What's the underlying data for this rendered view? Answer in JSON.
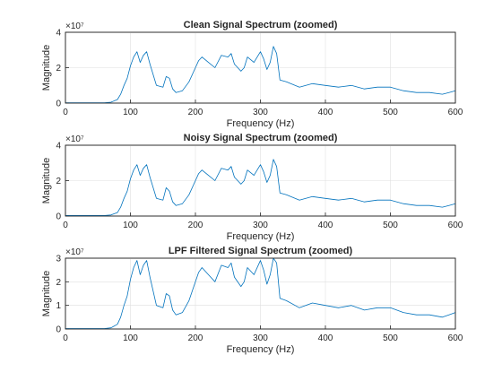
{
  "colors": {
    "series": "#0072bd",
    "axes": "#262626",
    "grid": "#dfdfdf",
    "background": "#ffffff"
  },
  "chart_data": [
    {
      "type": "line",
      "title": "Clean Signal Spectrum (zoomed)",
      "xlabel": "Frequency (Hz)",
      "ylabel": "Magnitude",
      "exponent_label": "×10⁷",
      "xlim": [
        0,
        600
      ],
      "ylim": [
        0,
        4
      ],
      "xticks": [
        "0",
        "100",
        "200",
        "300",
        "400",
        "500",
        "600"
      ],
      "yticks": [
        "0",
        "2",
        "4"
      ],
      "xtick_values": [
        0,
        100,
        200,
        300,
        400,
        500,
        600
      ],
      "ytick_values": [
        0,
        2,
        4
      ],
      "grid": true,
      "series": [
        {
          "x": [
            0,
            60,
            70,
            80,
            85,
            90,
            95,
            100,
            105,
            110,
            115,
            120,
            125,
            130,
            140,
            150,
            155,
            160,
            165,
            170,
            180,
            190,
            200,
            205,
            210,
            220,
            230,
            240,
            250,
            255,
            260,
            270,
            275,
            280,
            290,
            300,
            305,
            310,
            315,
            320,
            325,
            330,
            340,
            360,
            380,
            400,
            420,
            440,
            460,
            480,
            500,
            520,
            540,
            560,
            580,
            590,
            600
          ],
          "y": [
            0.02,
            0.02,
            0.05,
            0.2,
            0.5,
            1.0,
            1.4,
            2.1,
            2.6,
            2.9,
            2.3,
            2.7,
            2.9,
            2.2,
            1.0,
            0.9,
            1.5,
            1.4,
            0.8,
            0.6,
            0.7,
            1.2,
            2.0,
            2.4,
            2.6,
            2.3,
            2.0,
            2.7,
            2.6,
            2.8,
            2.2,
            1.8,
            2.0,
            2.6,
            2.3,
            2.9,
            2.5,
            1.9,
            2.3,
            3.2,
            2.8,
            1.3,
            1.2,
            0.9,
            1.1,
            1.0,
            0.9,
            1.0,
            0.8,
            0.9,
            0.9,
            0.7,
            0.6,
            0.6,
            0.5,
            0.6,
            0.7
          ]
        }
      ]
    },
    {
      "type": "line",
      "title": "Noisy Signal Spectrum (zoomed)",
      "xlabel": "Frequency (Hz)",
      "ylabel": "Magnitude",
      "exponent_label": "×10⁷",
      "xlim": [
        0,
        600
      ],
      "ylim": [
        0,
        4
      ],
      "xticks": [
        "0",
        "100",
        "200",
        "300",
        "400",
        "500",
        "600"
      ],
      "yticks": [
        "0",
        "2",
        "4"
      ],
      "xtick_values": [
        0,
        100,
        200,
        300,
        400,
        500,
        600
      ],
      "ytick_values": [
        0,
        2,
        4
      ],
      "grid": true,
      "series": [
        {
          "x": [
            0,
            60,
            70,
            80,
            85,
            90,
            95,
            100,
            105,
            110,
            115,
            120,
            125,
            130,
            140,
            150,
            155,
            160,
            165,
            170,
            180,
            190,
            200,
            205,
            210,
            220,
            230,
            240,
            250,
            255,
            260,
            270,
            275,
            280,
            290,
            300,
            305,
            310,
            315,
            320,
            325,
            330,
            340,
            360,
            380,
            400,
            420,
            440,
            460,
            480,
            500,
            520,
            540,
            560,
            580,
            590,
            600
          ],
          "y": [
            0.03,
            0.03,
            0.06,
            0.2,
            0.5,
            1.0,
            1.4,
            2.1,
            2.6,
            2.9,
            2.3,
            2.7,
            2.9,
            2.2,
            1.0,
            0.9,
            1.6,
            1.4,
            0.8,
            0.6,
            0.7,
            1.2,
            2.0,
            2.4,
            2.6,
            2.3,
            2.0,
            2.7,
            2.6,
            2.8,
            2.2,
            1.8,
            2.0,
            2.6,
            2.3,
            2.9,
            2.5,
            1.9,
            2.3,
            3.2,
            2.8,
            1.3,
            1.2,
            0.9,
            1.1,
            1.0,
            0.9,
            1.0,
            0.8,
            0.9,
            0.9,
            0.7,
            0.6,
            0.6,
            0.5,
            0.6,
            0.7
          ]
        }
      ]
    },
    {
      "type": "line",
      "title": "LPF Filtered Signal Spectrum (zoomed)",
      "xlabel": "Frequency (Hz)",
      "ylabel": "Magnitude",
      "exponent_label": "×10⁷",
      "xlim": [
        0,
        600
      ],
      "ylim": [
        0,
        3
      ],
      "xticks": [
        "0",
        "100",
        "200",
        "300",
        "400",
        "500",
        "600"
      ],
      "yticks": [
        "0",
        "1",
        "2",
        "3"
      ],
      "xtick_values": [
        0,
        100,
        200,
        300,
        400,
        500,
        600
      ],
      "ytick_values": [
        0,
        1,
        2,
        3
      ],
      "grid": true,
      "series": [
        {
          "x": [
            0,
            60,
            70,
            80,
            85,
            90,
            95,
            100,
            105,
            110,
            115,
            120,
            125,
            130,
            140,
            150,
            155,
            160,
            165,
            170,
            180,
            190,
            200,
            205,
            210,
            220,
            230,
            240,
            250,
            255,
            260,
            270,
            275,
            280,
            290,
            300,
            305,
            310,
            315,
            320,
            325,
            330,
            340,
            360,
            380,
            400,
            420,
            440,
            460,
            480,
            500,
            520,
            540,
            560,
            580,
            590,
            600
          ],
          "y": [
            0.02,
            0.02,
            0.05,
            0.2,
            0.5,
            1.0,
            1.4,
            2.1,
            2.6,
            2.9,
            2.3,
            2.7,
            2.9,
            2.2,
            1.0,
            0.9,
            1.5,
            1.4,
            0.8,
            0.6,
            0.7,
            1.2,
            2.0,
            2.4,
            2.6,
            2.3,
            2.0,
            2.7,
            2.6,
            2.8,
            2.2,
            1.8,
            2.0,
            2.6,
            2.3,
            2.9,
            2.5,
            1.9,
            2.3,
            3.0,
            2.8,
            1.3,
            1.2,
            0.9,
            1.1,
            1.0,
            0.9,
            1.0,
            0.8,
            0.9,
            0.9,
            0.7,
            0.6,
            0.6,
            0.5,
            0.6,
            0.7
          ]
        }
      ]
    }
  ]
}
